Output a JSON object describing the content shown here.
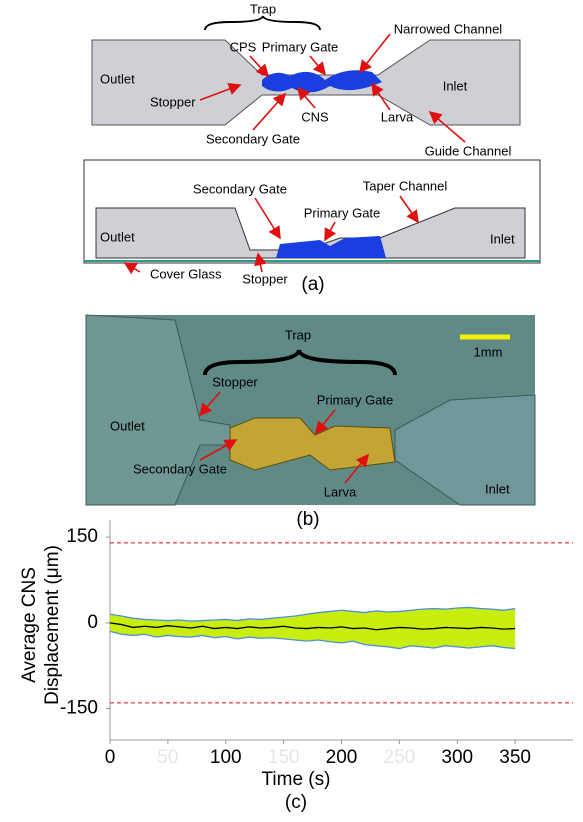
{
  "panel_a": {
    "top": {
      "trap": "Trap",
      "narrowed_channel": "Narrowed Channel",
      "cps": "CPS",
      "primary_gate": "Primary Gate",
      "outlet": "Outlet",
      "stopper": "Stopper",
      "cns": "CNS",
      "inlet": "Inlet",
      "larva": "Larva",
      "secondary_gate": "Secondary Gate",
      "guide_channel": "Guide Channel"
    },
    "side": {
      "secondary_gate": "Secondary Gate",
      "taper_channel": "Taper Channel",
      "primary_gate": "Primary Gate",
      "outlet": "Outlet",
      "inlet": "Inlet",
      "cover_glass": "Cover Glass",
      "stopper": "Stopper"
    },
    "caption": "(a)"
  },
  "panel_b": {
    "trap": "Trap",
    "scale": "1mm",
    "stopper": "Stopper",
    "primary_gate": "Primary Gate",
    "outlet": "Outlet",
    "secondary_gate": "Secondary Gate",
    "larva": "Larva",
    "inlet": "Inlet",
    "caption": "(b)"
  },
  "chart_data": {
    "type": "line",
    "ylabel": [
      "Average CNS",
      "Displacement (μm)"
    ],
    "xlabel": "Time (s)",
    "caption": "(c)",
    "x": [
      0,
      10,
      20,
      30,
      40,
      50,
      60,
      70,
      80,
      90,
      100,
      110,
      120,
      130,
      140,
      150,
      160,
      170,
      180,
      190,
      200,
      210,
      220,
      230,
      240,
      250,
      260,
      270,
      280,
      290,
      300,
      310,
      320,
      330,
      340,
      350
    ],
    "series": [
      {
        "color": "#000000",
        "values": [
          0,
          -3,
          -8,
          -6,
          -8,
          -5,
          -7,
          -9,
          -6,
          -10,
          -8,
          -10,
          -7,
          -9,
          -8,
          -6,
          -9,
          -10,
          -8,
          -9,
          -7,
          -10,
          -9,
          -12,
          -10,
          -8,
          -9,
          -11,
          -10,
          -8,
          -9,
          -10,
          -8,
          -9,
          -11,
          -10
        ]
      },
      {
        "color": "#4a90e2",
        "values": [
          15,
          12,
          8,
          6,
          5,
          4,
          5,
          3,
          4,
          5,
          6,
          4,
          7,
          6,
          8,
          10,
          12,
          15,
          18,
          20,
          22,
          20,
          18,
          21,
          19,
          20,
          22,
          24,
          25,
          24,
          26,
          27,
          25,
          24,
          22,
          25
        ]
      },
      {
        "color": "#4a90e2",
        "values": [
          -15,
          -20,
          -22,
          -20,
          -25,
          -22,
          -24,
          -25,
          -22,
          -26,
          -24,
          -28,
          -25,
          -27,
          -26,
          -28,
          -30,
          -32,
          -30,
          -33,
          -35,
          -32,
          -38,
          -40,
          -42,
          -45,
          -40,
          -42,
          -44,
          -40,
          -42,
          -44,
          -42,
          -40,
          -43,
          -45
        ]
      }
    ],
    "band_color": "#c8ee10",
    "reference_lines": [
      140,
      -140
    ],
    "reference_color": "#e01010",
    "xlim": [
      0,
      400
    ],
    "ylim": [
      -205,
      180
    ],
    "xticks": [
      0,
      50,
      100,
      150,
      200,
      250,
      300,
      350
    ],
    "xtick_colors": [
      "#000",
      "#e6e6e6",
      "#000",
      "#e6e6e6",
      "#000",
      "#e6e6e6",
      "#000",
      "#000"
    ],
    "yticks": [
      150,
      0,
      -150
    ]
  }
}
